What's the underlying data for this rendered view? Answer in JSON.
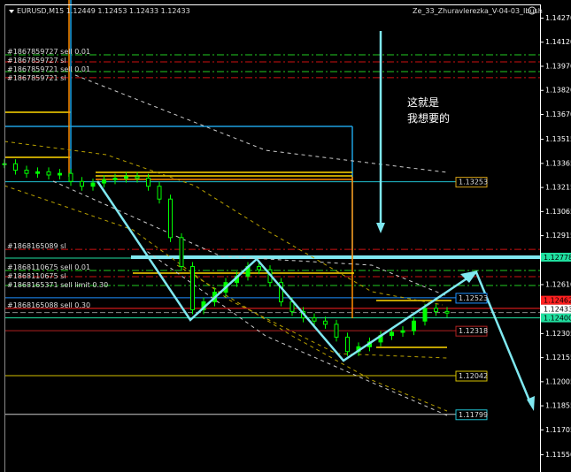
{
  "window": {
    "symbol_info": "EURUSD,M15  1.12449 1.12453 1.12433 1.12433",
    "expert": "Ze_33_Zhuravlerezka_V-04-03_Ibush",
    "expert_icon": "smiley-icon"
  },
  "annotation": {
    "line1": "这就是",
    "line2": "我想要的"
  },
  "chart_data": {
    "type": "candlestick",
    "title": "EURUSD,M15",
    "ohlc_header": {
      "open": 1.12449,
      "high": 1.12453,
      "low": 1.12433,
      "close": 1.12433
    },
    "y_ticks": [
      "1.14270",
      "1.14120",
      "1.13970",
      "1.13820",
      "1.13670",
      "1.13515",
      "1.13365",
      "1.13215",
      "1.13065",
      "1.12915",
      "1.12610",
      "1.12305",
      "1.12155",
      "1.12005",
      "1.11855",
      "1.11705",
      "1.11550"
    ],
    "ylim": [
      1.1155,
      1.1427
    ],
    "closes": [
      1.1336,
      1.1332,
      1.133,
      1.1331,
      1.1329,
      1.133,
      1.1325,
      1.1322,
      1.1324,
      1.1326,
      1.1327,
      1.1328,
      1.1327,
      1.1322,
      1.1314,
      1.129,
      1.1272,
      1.1245,
      1.125,
      1.1256,
      1.1262,
      1.1266,
      1.1272,
      1.127,
      1.1262,
      1.125,
      1.1244,
      1.124,
      1.1238,
      1.1236,
      1.1228,
      1.1219,
      1.1222,
      1.1225,
      1.1229,
      1.1231,
      1.1232,
      1.1238,
      1.1246,
      1.1244,
      1.1243
    ],
    "price_labels": [
      {
        "text": "1.13253",
        "price": 1.13248,
        "color": "#d4a017"
      },
      {
        "text": "1.12523",
        "price": 1.12525,
        "color": "#1e90ff"
      },
      {
        "text": "1.12318",
        "price": 1.1232,
        "color": "#b22222"
      },
      {
        "text": "1.12042",
        "price": 1.1204,
        "color": "#d4c000"
      },
      {
        "text": "1.11799",
        "price": 1.11799,
        "color": "#20c0d0"
      }
    ],
    "axis_labels": [
      {
        "text": "1.12778",
        "price": 1.12778,
        "bg": "#20e0a0",
        "fg": "#000"
      },
      {
        "text": "1.12462",
        "price": 1.12462,
        "bg": "#ff2020",
        "fg": "#000"
      },
      {
        "text": "1.12433",
        "price": 1.12433,
        "bg": "#ffffff",
        "fg": "#000"
      },
      {
        "text": "1.12400",
        "price": 1.124,
        "bg": "#20e0a0",
        "fg": "#000"
      }
    ],
    "order_lines": [
      {
        "text": "#1867859727 sell 0.01",
        "price": 1.14039,
        "color": "#22cc22"
      },
      {
        "text": "#1867859727 sl",
        "price": 1.13995,
        "color": "#cc1111"
      },
      {
        "text": "#1867859721 sell 0.01",
        "price": 1.13934,
        "color": "#22cc22"
      },
      {
        "text": "#1867859721 sl",
        "price": 1.13896,
        "color": "#cc1111"
      },
      {
        "text": "#1868165089 sl",
        "price": 1.12827,
        "color": "#cc1111"
      },
      {
        "text": "#1868110675 sell 0.01",
        "price": 1.12695,
        "color": "#22cc22"
      },
      {
        "text": "#1868110675 sl",
        "price": 1.12657,
        "color": "#cc1111"
      },
      {
        "text": "#1868165371 sell limit 0.30",
        "price": 1.12602,
        "color": "#22cc22"
      },
      {
        "text": "#1868165088 sell 0.30",
        "price": 1.12459,
        "color": "#ff2020"
      }
    ],
    "colors": {
      "bull": "#00ff00",
      "bear": "#ffffff",
      "arrows": "#7fe8f0",
      "grid_axis": "#ffffff"
    }
  }
}
